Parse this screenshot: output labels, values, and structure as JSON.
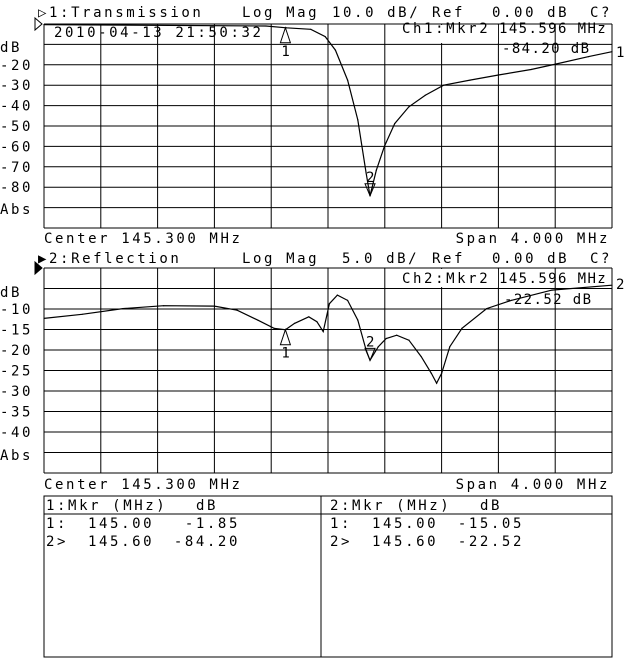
{
  "chart_data": [
    {
      "type": "line",
      "channel_label": "▷1:Transmission",
      "format": "Log Mag",
      "scale": "10.0 dB/",
      "ref_label": "Ref",
      "ref_value": "0.00 dB",
      "status": "C?",
      "timestamp": "2010-04-13 21:50:32",
      "marker_readout": {
        "label": "Ch1:Mkr2",
        "freq": "145.596 MHz",
        "value": "-84.20 dB"
      },
      "ylabel": "dB",
      "yformat": "Abs",
      "ylim": [
        -100,
        0
      ],
      "yticks": [
        "",
        "",
        "-20",
        "-30",
        "-40",
        "-50",
        "-60",
        "-70",
        "-80",
        "",
        ""
      ],
      "xlim_mhz": [
        143.3,
        147.3
      ],
      "center": "Center 145.300 MHz",
      "span": "Span 4.000 MHz",
      "grid": true,
      "trace_end_label": "1",
      "markers": [
        {
          "id": "1",
          "freq": 145.0,
          "db": -1.85,
          "dir": "up"
        },
        {
          "id": "2",
          "freq": 145.596,
          "db": -84.2,
          "dir": "down"
        }
      ],
      "x": [
        143.3,
        144.863,
        145.006,
        145.179,
        145.28,
        145.352,
        145.438,
        145.51,
        145.568,
        145.596,
        145.64,
        145.697,
        145.77,
        145.87,
        145.985,
        146.114,
        146.3,
        146.5,
        146.73,
        146.906,
        147.136,
        147.3
      ],
      "y": [
        -0.3,
        -1.0,
        -1.85,
        -2.6,
        -6.2,
        -12.8,
        -27.5,
        -47,
        -73,
        -84.2,
        -71.7,
        -60,
        -48.8,
        -40.6,
        -34.9,
        -30,
        -27.5,
        -25,
        -22.3,
        -19.6,
        -16,
        -13.6
      ]
    },
    {
      "type": "line",
      "channel_label": "▶2:Reflection",
      "format": "Log Mag",
      "scale": "5.0 dB/",
      "ref_label": "Ref",
      "ref_value": "0.00 dB",
      "status": "C?",
      "marker_readout": {
        "label": "Ch2:Mkr2",
        "freq": "145.596 MHz",
        "value": "-22.52 dB"
      },
      "ylabel": "dB",
      "yformat": "Abs",
      "ylim": [
        -50,
        0
      ],
      "yticks": [
        "",
        "",
        "-10",
        "-15",
        "-20",
        "-25",
        "-30",
        "-35",
        "-40",
        "",
        ""
      ],
      "xlim_mhz": [
        143.3,
        147.3
      ],
      "center": "Center 145.300 MHz",
      "span": "Span 4.000 MHz",
      "grid": true,
      "trace_end_label": "2",
      "markers": [
        {
          "id": "1",
          "freq": 145.0,
          "db": -15.05,
          "dir": "up"
        },
        {
          "id": "2",
          "freq": 145.596,
          "db": -22.52,
          "dir": "down"
        }
      ],
      "x": [
        143.3,
        143.568,
        143.855,
        144.143,
        144.5,
        144.66,
        144.805,
        144.92,
        145.0,
        145.064,
        145.165,
        145.222,
        145.266,
        145.31,
        145.366,
        145.438,
        145.51,
        145.568,
        145.596,
        145.654,
        145.71,
        145.784,
        145.87,
        145.956,
        146.028,
        146.065,
        146.1,
        146.158,
        146.244,
        146.417,
        146.59,
        146.877,
        147.3
      ],
      "y": [
        -12.3,
        -11.3,
        -9.9,
        -9.2,
        -9.3,
        -10.3,
        -12.7,
        -14.7,
        -15.05,
        -13.5,
        -11.9,
        -13.1,
        -15.5,
        -8.7,
        -6.6,
        -7.9,
        -12.7,
        -20,
        -22.52,
        -19.2,
        -17.2,
        -16.4,
        -17.6,
        -21.6,
        -25.7,
        -28.1,
        -25.7,
        -19.2,
        -14.7,
        -9.9,
        -7.9,
        -5.4,
        -4.2
      ]
    }
  ],
  "marker_table": [
    {
      "header": {
        "mkr": "1:Mkr (MHz)",
        "unit": "dB"
      },
      "rows": [
        {
          "id": "1:",
          "freq": "145.00",
          "db": "-1.85"
        },
        {
          "id": "2>",
          "freq": "145.60",
          "db": "-84.20"
        }
      ]
    },
    {
      "header": {
        "mkr": "2:Mkr (MHz)",
        "unit": "dB"
      },
      "rows": [
        {
          "id": "1:",
          "freq": "145.00",
          "db": "-15.05"
        },
        {
          "id": "2>",
          "freq": "145.60",
          "db": "-22.52"
        }
      ]
    }
  ]
}
